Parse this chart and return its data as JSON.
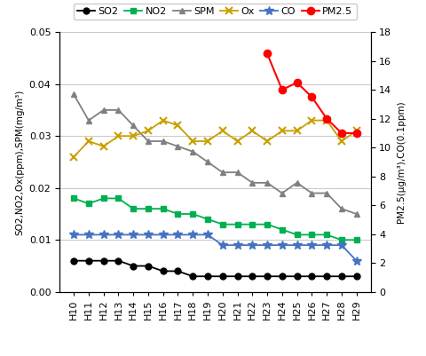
{
  "years": [
    "H10",
    "H11",
    "H12",
    "H13",
    "H14",
    "H15",
    "H16",
    "H17",
    "H18",
    "H19",
    "H20",
    "H21",
    "H22",
    "H23",
    "H24",
    "H25",
    "H26",
    "H27",
    "H28",
    "H29"
  ],
  "SO2": [
    0.006,
    0.006,
    0.006,
    0.006,
    0.005,
    0.005,
    0.004,
    0.004,
    0.003,
    0.003,
    0.003,
    0.003,
    0.003,
    0.003,
    0.003,
    0.003,
    0.003,
    0.003,
    0.003,
    0.003
  ],
  "NO2": [
    0.018,
    0.017,
    0.018,
    0.018,
    0.016,
    0.016,
    0.016,
    0.015,
    0.015,
    0.014,
    0.013,
    0.013,
    0.013,
    0.013,
    0.012,
    0.011,
    0.011,
    0.011,
    0.01,
    0.01
  ],
  "SPM": [
    0.038,
    0.033,
    0.035,
    0.035,
    0.032,
    0.029,
    0.029,
    0.028,
    0.027,
    0.025,
    0.023,
    0.023,
    0.021,
    0.021,
    0.019,
    0.021,
    0.019,
    0.019,
    0.016,
    0.015
  ],
  "Ox": [
    0.026,
    0.029,
    0.028,
    0.03,
    0.03,
    0.031,
    0.033,
    0.032,
    0.029,
    0.029,
    0.031,
    0.029,
    0.031,
    0.029,
    0.031,
    0.031,
    0.033,
    0.033,
    0.029,
    0.031
  ],
  "CO": [
    0.011,
    0.011,
    0.011,
    0.011,
    0.011,
    0.011,
    0.011,
    0.011,
    0.011,
    0.011,
    0.009,
    0.009,
    0.009,
    0.009,
    0.009,
    0.009,
    0.009,
    0.009,
    0.009,
    0.006
  ],
  "PM25": [
    null,
    null,
    null,
    null,
    null,
    null,
    null,
    null,
    null,
    null,
    null,
    null,
    null,
    16.5,
    14.0,
    14.5,
    13.5,
    12.0,
    11.0,
    11.0
  ],
  "SO2_color": "#000000",
  "NO2_color": "#00b050",
  "SPM_color": "#808080",
  "Ox_color": "#c8a000",
  "CO_color": "#4472c4",
  "PM25_color": "#ff0000",
  "left_ylim": [
    0.0,
    0.05
  ],
  "right_ylim": [
    0,
    18
  ],
  "left_yticks": [
    0.0,
    0.01,
    0.02,
    0.03,
    0.04,
    0.05
  ],
  "right_yticks": [
    0,
    2,
    4,
    6,
    8,
    10,
    12,
    14,
    16,
    18
  ],
  "left_ylabel": "SO2,NO2,Ox(ppm),SPM(mg/m³)",
  "right_ylabel": "PM2.5(μg/m³),CO(0.1ppm)",
  "figsize": [
    4.8,
    4.01
  ],
  "dpi": 100
}
